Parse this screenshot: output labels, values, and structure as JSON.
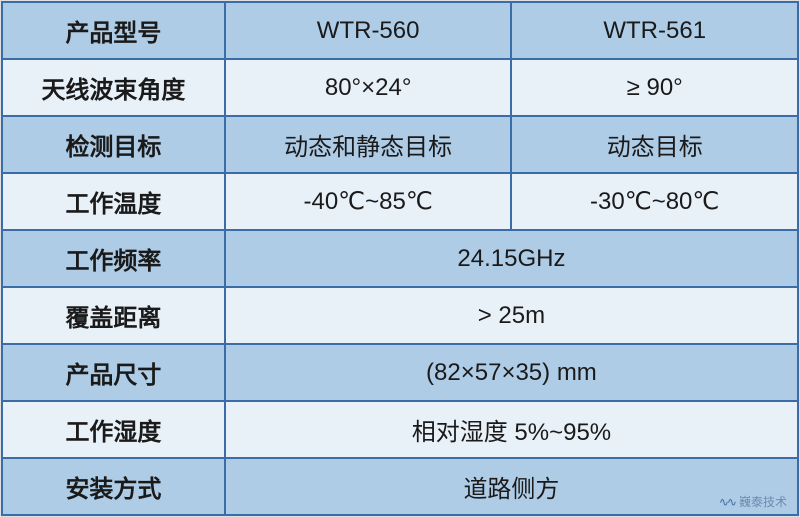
{
  "table": {
    "colors": {
      "border": "#3a6ca8",
      "row_blue": "#aecce6",
      "row_light": "#e8f0f8",
      "text": "#1a1a1a"
    },
    "column_widths": [
      "28%",
      "36%",
      "36%"
    ],
    "font_size": 24,
    "rows": [
      {
        "type": "three",
        "bg": "blue",
        "label": "产品型号",
        "col1": "WTR-560",
        "col2": "WTR-561"
      },
      {
        "type": "three",
        "bg": "light",
        "label": "天线波束角度",
        "col1": "80°×24°",
        "col2": "≥ 90°"
      },
      {
        "type": "three",
        "bg": "blue",
        "label": "检测目标",
        "col1": "动态和静态目标",
        "col2": "动态目标"
      },
      {
        "type": "three",
        "bg": "light",
        "label": "工作温度",
        "col1": "-40℃~85℃",
        "col2": "-30℃~80℃"
      },
      {
        "type": "merged",
        "bg": "blue",
        "label": "工作频率",
        "value": "24.15GHz"
      },
      {
        "type": "merged",
        "bg": "light",
        "label": "覆盖距离",
        "value": "> 25m"
      },
      {
        "type": "merged",
        "bg": "blue",
        "label": "产品尺寸",
        "value": "(82×57×35) mm"
      },
      {
        "type": "merged",
        "bg": "light",
        "label": "工作湿度",
        "value": "相对湿度 5%~95%"
      },
      {
        "type": "merged",
        "bg": "blue",
        "label": "安装方式",
        "value": "道路侧方"
      }
    ]
  },
  "watermark": {
    "text": "巍泰技术",
    "color": "#6a8cb0"
  }
}
